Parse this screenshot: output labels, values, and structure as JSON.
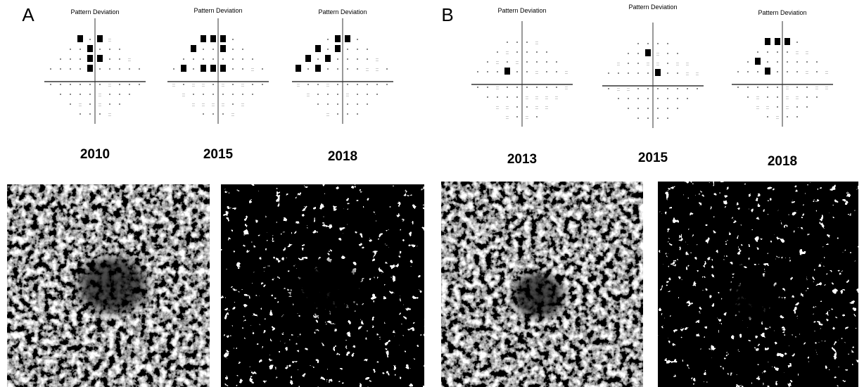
{
  "panels": [
    {
      "label": "A",
      "fields": [
        {
          "title": "Pattern Deviation",
          "year": "2010"
        },
        {
          "title": "Pattern Deviation",
          "year": "2015"
        },
        {
          "title": "Pattern Deviation",
          "year": "2018"
        }
      ]
    },
    {
      "label": "B",
      "fields": [
        {
          "title": "Pattern Deviation",
          "year": "2013"
        },
        {
          "title": "Pattern Deviation",
          "year": "2015"
        },
        {
          "title": "Pattern Deviation",
          "year": "2018"
        }
      ]
    }
  ]
}
